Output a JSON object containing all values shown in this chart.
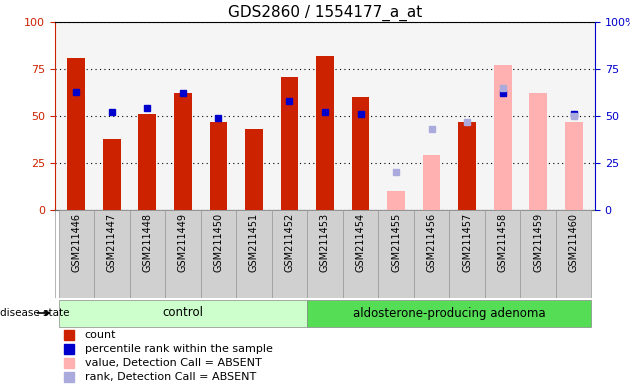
{
  "title": "GDS2860 / 1554177_a_at",
  "samples": [
    "GSM211446",
    "GSM211447",
    "GSM211448",
    "GSM211449",
    "GSM211450",
    "GSM211451",
    "GSM211452",
    "GSM211453",
    "GSM211454",
    "GSM211455",
    "GSM211456",
    "GSM211457",
    "GSM211458",
    "GSM211459",
    "GSM211460"
  ],
  "count_values": [
    81,
    38,
    51,
    62,
    47,
    43,
    71,
    82,
    60,
    null,
    null,
    47,
    null,
    null,
    null
  ],
  "percentile_values": [
    63,
    52,
    54,
    62,
    49,
    null,
    58,
    52,
    51,
    null,
    null,
    null,
    62,
    null,
    51
  ],
  "absent_value_values": [
    null,
    null,
    null,
    null,
    null,
    null,
    null,
    null,
    null,
    10,
    29,
    null,
    77,
    62,
    47
  ],
  "absent_rank_values": [
    null,
    null,
    null,
    null,
    null,
    null,
    null,
    null,
    null,
    20,
    43,
    47,
    65,
    null,
    50
  ],
  "control_samples": [
    "GSM211446",
    "GSM211447",
    "GSM211448",
    "GSM211449",
    "GSM211450",
    "GSM211451",
    "GSM211452"
  ],
  "adenoma_samples": [
    "GSM211453",
    "GSM211454",
    "GSM211455",
    "GSM211456",
    "GSM211457",
    "GSM211458",
    "GSM211459",
    "GSM211460"
  ],
  "bar_color_count": "#cc2200",
  "bar_color_absent_value": "#ffb0b0",
  "marker_color_percentile": "#0000cc",
  "marker_color_absent_rank": "#aaaadd",
  "ylim": [
    0,
    100
  ],
  "bg_plot": "#f5f5f5",
  "bg_labels": "#d0d0d0",
  "bg_control": "#ccffcc",
  "bg_adenoma": "#55dd55",
  "label_color_left": "#cc2200",
  "label_color_right": "#0000cc"
}
